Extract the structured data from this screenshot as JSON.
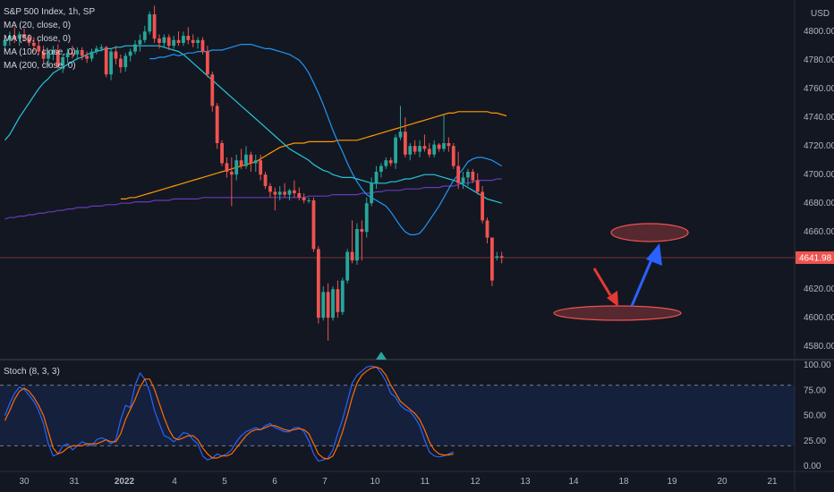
{
  "legend": {
    "title": "S&P 500 Index, 1h, SP",
    "ma20": "MA (20, close, 0)",
    "ma50": "MA (50, close, 0)",
    "ma100": "MA (100, close, 0)",
    "ma200": "MA (200, close, 0)"
  },
  "stoch_label": "Stoch (8, 3, 3)",
  "currency": "USD",
  "last_price": "4641.98",
  "colors": {
    "up": "#26a69a",
    "down": "#ef5350",
    "ma20": "#2196f3",
    "ma50": "#26c6da",
    "ma100": "#673ab7",
    "ma200": "#ff9800",
    "stoch_k": "#2962ff",
    "stoch_d": "#ff6d00",
    "arrow_down": "#e53935",
    "arrow_up": "#2962ff"
  },
  "chart_data": {
    "type": "candlestick",
    "price_axis": {
      "ylim": [
        4572,
        4822
      ],
      "ticks": [
        "4800.00",
        "4780.00",
        "4760.00",
        "4740.00",
        "4720.00",
        "4700.00",
        "4680.00",
        "4660.00",
        "4640.00",
        "4620.00",
        "4600.00",
        "4580.00"
      ]
    },
    "stoch_axis": {
      "ylim": [
        0,
        100
      ],
      "ticks": [
        "100.00",
        "75.00",
        "50.00",
        "25.00",
        "0.00"
      ],
      "bands": [
        20,
        80
      ]
    },
    "x_axis": {
      "labels": [
        "30",
        "31",
        "2022",
        "4",
        "5",
        "6",
        "7",
        "10",
        "11",
        "12",
        "13",
        "14",
        "18",
        "19",
        "20",
        "21"
      ]
    },
    "candles": [
      [
        4790,
        4796,
        4786,
        4794
      ],
      [
        4794,
        4800,
        4790,
        4797
      ],
      [
        4797,
        4803,
        4792,
        4795
      ],
      [
        4795,
        4800,
        4790,
        4798
      ],
      [
        4798,
        4802,
        4793,
        4796
      ],
      [
        4796,
        4798,
        4790,
        4792
      ],
      [
        4792,
        4796,
        4786,
        4790
      ],
      [
        4790,
        4794,
        4784,
        4786
      ],
      [
        4786,
        4790,
        4778,
        4781
      ],
      [
        4781,
        4787,
        4776,
        4784
      ],
      [
        4784,
        4790,
        4780,
        4787
      ],
      [
        4787,
        4791,
        4774,
        4776
      ],
      [
        4776,
        4784,
        4771,
        4782
      ],
      [
        4782,
        4788,
        4778,
        4785
      ],
      [
        4785,
        4790,
        4781,
        4784
      ],
      [
        4784,
        4789,
        4780,
        4787
      ],
      [
        4787,
        4789,
        4780,
        4783
      ],
      [
        4783,
        4786,
        4778,
        4781
      ],
      [
        4781,
        4788,
        4779,
        4786
      ],
      [
        4786,
        4790,
        4784,
        4788
      ],
      [
        4788,
        4791,
        4786,
        4789
      ],
      [
        4789,
        4790,
        4768,
        4770
      ],
      [
        4770,
        4788,
        4766,
        4786
      ],
      [
        4786,
        4790,
        4777,
        4781
      ],
      [
        4781,
        4784,
        4771,
        4775
      ],
      [
        4775,
        4785,
        4772,
        4783
      ],
      [
        4783,
        4788,
        4779,
        4786
      ],
      [
        4786,
        4794,
        4784,
        4791
      ],
      [
        4791,
        4798,
        4786,
        4794
      ],
      [
        4794,
        4804,
        4792,
        4800
      ],
      [
        4800,
        4814,
        4798,
        4812
      ],
      [
        4812,
        4818,
        4792,
        4795
      ],
      [
        4795,
        4798,
        4788,
        4792
      ],
      [
        4792,
        4798,
        4789,
        4796
      ],
      [
        4796,
        4798,
        4787,
        4790
      ],
      [
        4790,
        4797,
        4788,
        4794
      ],
      [
        4794,
        4800,
        4790,
        4792
      ],
      [
        4792,
        4800,
        4790,
        4797
      ],
      [
        4797,
        4803,
        4791,
        4794
      ],
      [
        4794,
        4798,
        4789,
        4792
      ],
      [
        4792,
        4796,
        4788,
        4794
      ],
      [
        4794,
        4796,
        4784,
        4786
      ],
      [
        4786,
        4790,
        4768,
        4770
      ],
      [
        4770,
        4772,
        4744,
        4748
      ],
      [
        4748,
        4750,
        4718,
        4722
      ],
      [
        4722,
        4724,
        4706,
        4708
      ],
      [
        4708,
        4712,
        4698,
        4702
      ],
      [
        4702,
        4712,
        4678,
        4700
      ],
      [
        4700,
        4714,
        4696,
        4710
      ],
      [
        4710,
        4718,
        4704,
        4706
      ],
      [
        4706,
        4720,
        4704,
        4714
      ],
      [
        4714,
        4716,
        4702,
        4708
      ],
      [
        4708,
        4714,
        4702,
        4710
      ],
      [
        4710,
        4714,
        4696,
        4700
      ],
      [
        4700,
        4702,
        4690,
        4692
      ],
      [
        4692,
        4694,
        4684,
        4688
      ],
      [
        4688,
        4691,
        4675,
        4686
      ],
      [
        4686,
        4692,
        4682,
        4688
      ],
      [
        4688,
        4694,
        4684,
        4686
      ],
      [
        4686,
        4690,
        4682,
        4689
      ],
      [
        4689,
        4696,
        4684,
        4687
      ],
      [
        4687,
        4691,
        4682,
        4684
      ],
      [
        4684,
        4687,
        4680,
        4682
      ],
      [
        4682,
        4684,
        4680,
        4682
      ],
      [
        4682,
        4684,
        4646,
        4648
      ],
      [
        4648,
        4650,
        4596,
        4600
      ],
      [
        4600,
        4622,
        4598,
        4618
      ],
      [
        4618,
        4624,
        4584,
        4600
      ],
      [
        4600,
        4622,
        4598,
        4620
      ],
      [
        4620,
        4626,
        4600,
        4604
      ],
      [
        4604,
        4628,
        4602,
        4626
      ],
      [
        4626,
        4648,
        4624,
        4646
      ],
      [
        4646,
        4668,
        4638,
        4640
      ],
      [
        4640,
        4666,
        4637,
        4662
      ],
      [
        4662,
        4668,
        4640,
        4660
      ],
      [
        4660,
        4684,
        4656,
        4680
      ],
      [
        4680,
        4698,
        4678,
        4694
      ],
      [
        4694,
        4706,
        4690,
        4702
      ],
      [
        4702,
        4708,
        4698,
        4706
      ],
      [
        4706,
        4712,
        4704,
        4710
      ],
      [
        4710,
        4712,
        4706,
        4708
      ],
      [
        4708,
        4728,
        4704,
        4726
      ],
      [
        4726,
        4748,
        4724,
        4730
      ],
      [
        4730,
        4740,
        4712,
        4714
      ],
      [
        4714,
        4722,
        4710,
        4720
      ],
      [
        4720,
        4724,
        4714,
        4716
      ],
      [
        4716,
        4724,
        4712,
        4720
      ],
      [
        4720,
        4728,
        4716,
        4718
      ],
      [
        4718,
        4722,
        4712,
        4714
      ],
      [
        4714,
        4724,
        4712,
        4721
      ],
      [
        4721,
        4722,
        4716,
        4718
      ],
      [
        4718,
        4742,
        4716,
        4722
      ],
      [
        4722,
        4726,
        4716,
        4720
      ],
      [
        4720,
        4722,
        4704,
        4706
      ],
      [
        4706,
        4716,
        4690,
        4694
      ],
      [
        4694,
        4702,
        4690,
        4698
      ],
      [
        4698,
        4704,
        4692,
        4702
      ],
      [
        4702,
        4704,
        4694,
        4696
      ],
      [
        4696,
        4701,
        4686,
        4688
      ],
      [
        4688,
        4692,
        4666,
        4668
      ],
      [
        4668,
        4670,
        4652,
        4656
      ],
      [
        4656,
        4656,
        4622,
        4626
      ],
      [
        4642,
        4646,
        4640,
        4643
      ],
      [
        4643,
        4646,
        4638,
        4642
      ]
    ],
    "ma20": [
      4781,
      4781,
      4782,
      4782,
      4783,
      4784,
      4783,
      4784,
      4785,
      4785,
      4786,
      4786,
      4786,
      4787,
      4787,
      4787,
      4788,
      4789,
      4790,
      4791,
      4791,
      4791,
      4790,
      4789,
      4788,
      4788,
      4787,
      4786,
      4785,
      4784,
      4782,
      4780,
      4776,
      4771,
      4764,
      4757,
      4749,
      4740,
      4731,
      4723,
      4716,
      4708,
      4701,
      4695,
      4690,
      4686,
      4684,
      4682,
      4680,
      4678,
      4674,
      4669,
      4664,
      4660,
      4658,
      4658,
      4659,
      4663,
      4668,
      4673,
      4678,
      4684,
      4690,
      4696,
      4700,
      4704,
      4709,
      4711,
      4712,
      4712,
      4711,
      4710,
      4708,
      4706
    ],
    "ma20_start": 30,
    "ma50": [
      4724,
      4728,
      4734,
      4740,
      4745,
      4750,
      4755,
      4760,
      4764,
      4767,
      4771,
      4773,
      4775,
      4777,
      4779,
      4781,
      4782,
      4784,
      4785,
      4786,
      4787,
      4788,
      4788,
      4789,
      4789,
      4790,
      4790,
      4790,
      4790,
      4790,
      4790,
      4790,
      4790,
      4789,
      4788,
      4787,
      4786,
      4784,
      4781,
      4778,
      4775,
      4772,
      4769,
      4766,
      4763,
      4760,
      4757,
      4754,
      4751,
      4748,
      4745,
      4742,
      4739,
      4736,
      4733,
      4730,
      4727,
      4724,
      4721,
      4718,
      4716,
      4714,
      4712,
      4710,
      4707,
      4705,
      4703,
      4702,
      4700,
      4699,
      4698,
      4698,
      4698,
      4697,
      4696,
      4695,
      4694,
      4694,
      4694,
      4694,
      4695,
      4695,
      4696,
      4697,
      4697,
      4698,
      4699,
      4700,
      4700,
      4700,
      4699,
      4698,
      4697,
      4696,
      4695,
      4693,
      4691,
      4689,
      4687,
      4685,
      4683,
      4682,
      4681,
      4680
    ],
    "ma100": [
      4669,
      4670,
      4670,
      4671,
      4671,
      4672,
      4672,
      4673,
      4673,
      4674,
      4674,
      4675,
      4675,
      4676,
      4676,
      4677,
      4677,
      4677,
      4678,
      4678,
      4678,
      4679,
      4679,
      4679,
      4680,
      4680,
      4680,
      4681,
      4681,
      4681,
      4681,
      4682,
      4682,
      4682,
      4682,
      4683,
      4683,
      4683,
      4683,
      4683,
      4683,
      4684,
      4684,
      4684,
      4684,
      4684,
      4684,
      4684,
      4684,
      4684,
      4684,
      4684,
      4684,
      4684,
      4684,
      4684,
      4684,
      4684,
      4684,
      4684,
      4684,
      4684,
      4684,
      4685,
      4685,
      4685,
      4685,
      4685,
      4686,
      4686,
      4686,
      4686,
      4686,
      4686,
      4687,
      4687,
      4687,
      4688,
      4688,
      4689,
      4689,
      4689,
      4689,
      4690,
      4690,
      4690,
      4690,
      4691,
      4691,
      4691,
      4691,
      4692,
      4692,
      4692,
      4693,
      4694,
      4694,
      4695,
      4696,
      4696,
      4696,
      4696,
      4697,
      4697
    ],
    "ma200": [
      4683,
      4683,
      4684,
      4684,
      4685,
      4686,
      4687,
      4688,
      4689,
      4690,
      4691,
      4692,
      4693,
      4694,
      4695,
      4696,
      4697,
      4698,
      4699,
      4700,
      4701,
      4702,
      4703,
      4704,
      4705,
      4706,
      4707,
      4708,
      4709,
      4711,
      4713,
      4715,
      4717,
      4719,
      4720,
      4721,
      4722,
      4722,
      4722,
      4723,
      4723,
      4723,
      4723,
      4723,
      4723,
      4724,
      4724,
      4724,
      4724,
      4724,
      4725,
      4726,
      4727,
      4728,
      4729,
      4730,
      4731,
      4732,
      4733,
      4734,
      4735,
      4736,
      4737,
      4738,
      4739,
      4740,
      4741,
      4742,
      4743,
      4743,
      4744,
      4744,
      4744,
      4744,
      4744,
      4744,
      4744,
      4743,
      4743,
      4742,
      4741
    ],
    "stoch_k": [
      50,
      62,
      72,
      78,
      76,
      70,
      64,
      55,
      42,
      22,
      10,
      12,
      20,
      22,
      16,
      20,
      24,
      22,
      20,
      26,
      28,
      26,
      22,
      26,
      46,
      60,
      58,
      80,
      92,
      86,
      74,
      55,
      42,
      30,
      28,
      24,
      28,
      33,
      32,
      26,
      22,
      10,
      6,
      8,
      12,
      10,
      12,
      16,
      24,
      30,
      34,
      36,
      38,
      36,
      40,
      42,
      38,
      36,
      34,
      34,
      38,
      38,
      34,
      25,
      12,
      5,
      6,
      8,
      16,
      32,
      46,
      64,
      82,
      90,
      94,
      98,
      99,
      98,
      92,
      84,
      72,
      68,
      60,
      56,
      54,
      48,
      40,
      26,
      14,
      10,
      9,
      10,
      12,
      14
    ],
    "stoch_d": [
      45,
      55,
      66,
      74,
      77,
      74,
      68,
      60,
      50,
      34,
      18,
      12,
      14,
      18,
      20,
      20,
      20,
      22,
      22,
      22,
      24,
      26,
      24,
      24,
      32,
      46,
      56,
      66,
      78,
      86,
      86,
      76,
      62,
      48,
      36,
      28,
      26,
      28,
      30,
      30,
      26,
      18,
      12,
      8,
      8,
      10,
      10,
      12,
      18,
      24,
      30,
      34,
      36,
      36,
      38,
      40,
      40,
      38,
      36,
      35,
      36,
      37,
      36,
      32,
      22,
      12,
      8,
      7,
      10,
      20,
      34,
      50,
      68,
      82,
      90,
      94,
      97,
      98,
      96,
      90,
      80,
      72,
      64,
      60,
      56,
      52,
      46,
      36,
      24,
      16,
      12,
      11,
      11,
      12
    ]
  }
}
